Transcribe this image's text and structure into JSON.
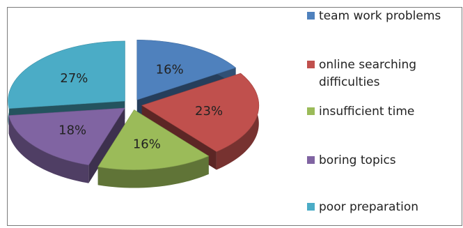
{
  "chart_data": {
    "type": "pie",
    "style": "3d-exploded",
    "title": "",
    "slices": [
      {
        "label": "team work problems",
        "value": 16,
        "display": "16%",
        "color": "#4f81bd"
      },
      {
        "label": "online searching difficulties",
        "legend_lines": [
          "online searching",
          "difficulties"
        ],
        "value": 23,
        "display": "23%",
        "color": "#c0504d"
      },
      {
        "label": "insufficient time",
        "value": 16,
        "display": "16%",
        "color": "#9bbb59"
      },
      {
        "label": "boring topics",
        "value": 18,
        "display": "18%",
        "color": "#8064a2"
      },
      {
        "label": "poor preparation",
        "value": 27,
        "display": "27%",
        "color": "#4bacc6"
      }
    ],
    "legend_position": "right"
  }
}
